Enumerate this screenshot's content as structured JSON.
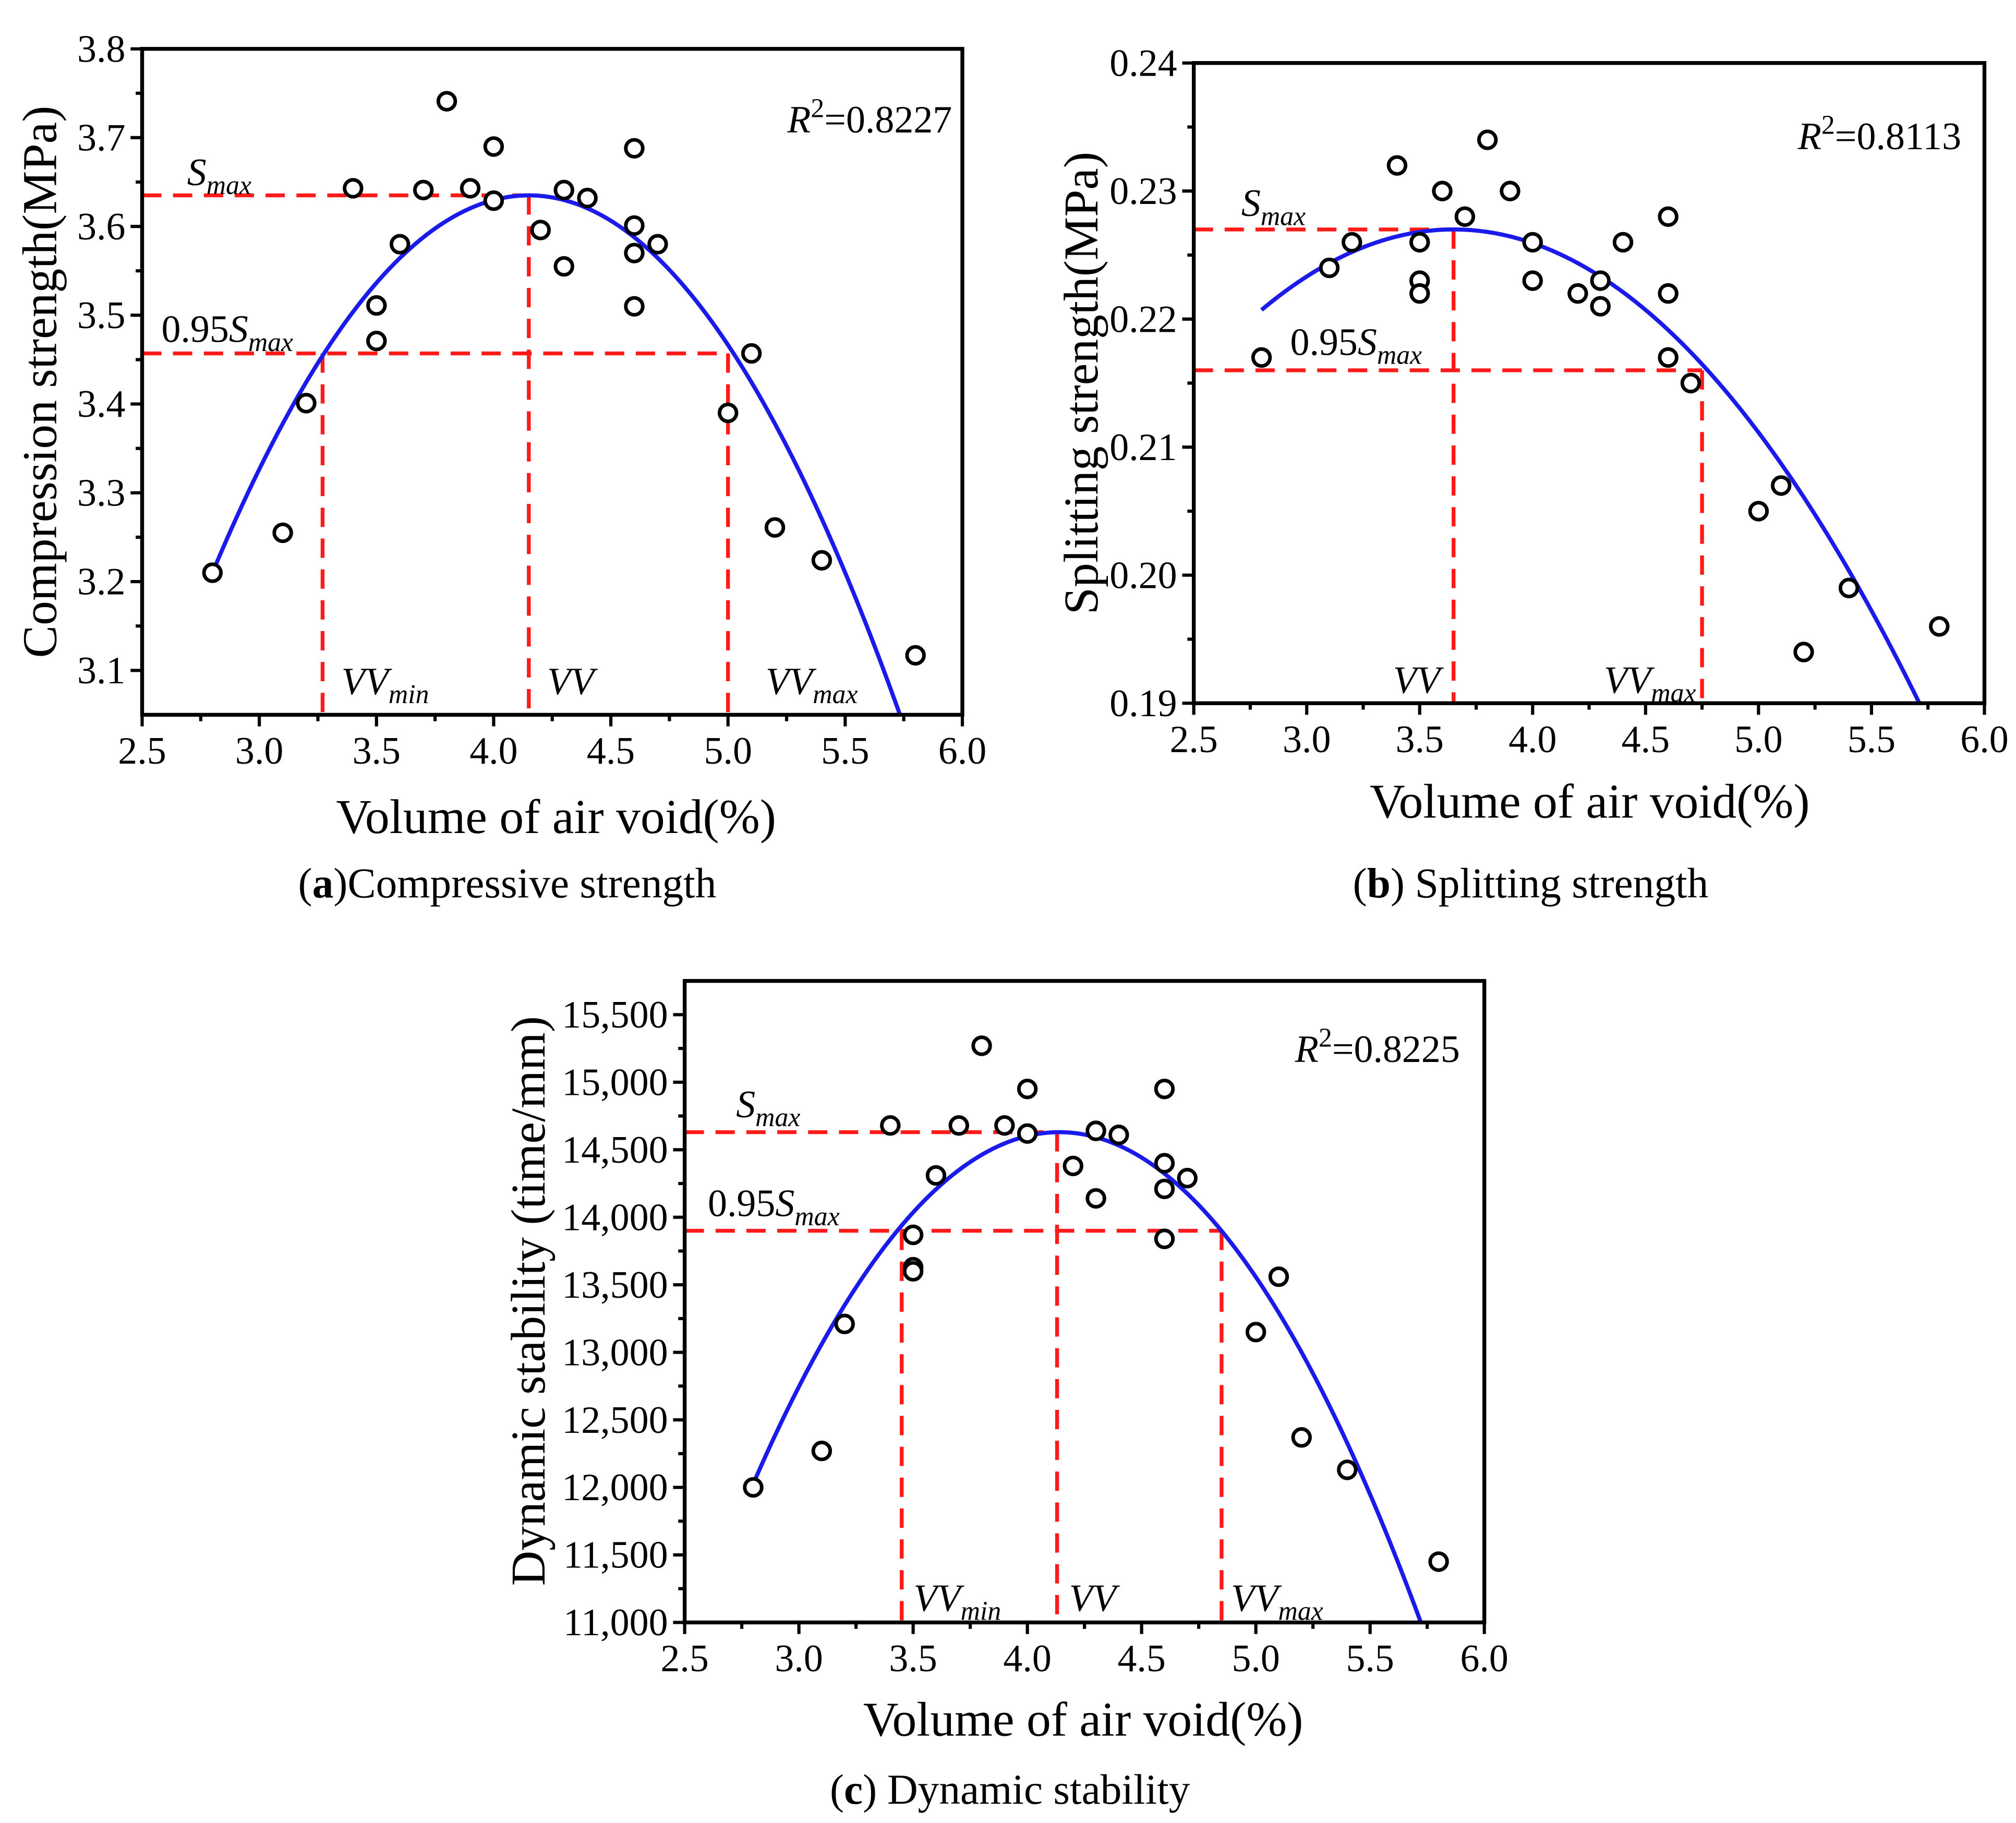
{
  "colors": {
    "fit": "#1a1aeb",
    "reference": "#ff1a1a",
    "marker": "#000000",
    "axis": "#000000"
  },
  "chart_data": [
    {
      "type": "scatter",
      "title": "",
      "caption": {
        "open": "(",
        "letter": "a",
        "close": ")",
        "text": "Compressive strength"
      },
      "xlabel": "Volume of air void(%)",
      "ylabel": "Compression strength(MPa)",
      "xlim": [
        2.5,
        6.0
      ],
      "ylim": [
        3.05,
        3.8
      ],
      "xtick_labels": [
        "2.5",
        "3.0",
        "3.5",
        "4.0",
        "4.5",
        "5.0",
        "5.5",
        "6.0"
      ],
      "ytick_labels": [
        "3.1",
        "3.2",
        "3.3",
        "3.4",
        "3.5",
        "3.6",
        "3.7",
        "3.8"
      ],
      "points": [
        [
          2.8,
          3.21
        ],
        [
          3.1,
          3.255
        ],
        [
          3.2,
          3.401
        ],
        [
          3.4,
          3.643
        ],
        [
          3.5,
          3.511
        ],
        [
          3.5,
          3.471
        ],
        [
          3.6,
          3.58
        ],
        [
          3.7,
          3.641
        ],
        [
          3.8,
          3.741
        ],
        [
          3.9,
          3.643
        ],
        [
          4.0,
          3.69
        ],
        [
          4.0,
          3.629
        ],
        [
          4.2,
          3.596
        ],
        [
          4.3,
          3.641
        ],
        [
          4.3,
          3.555
        ],
        [
          4.4,
          3.632
        ],
        [
          4.6,
          3.688
        ],
        [
          4.6,
          3.601
        ],
        [
          4.6,
          3.57
        ],
        [
          4.6,
          3.51
        ],
        [
          4.7,
          3.58
        ],
        [
          5.0,
          3.39
        ],
        [
          5.1,
          3.457
        ],
        [
          5.2,
          3.261
        ],
        [
          5.4,
          3.224
        ],
        [
          5.8,
          3.117
        ]
      ],
      "fit": {
        "a": -0.2332,
        "h": 4.15,
        "k": 3.635,
        "x_range": [
          2.8,
          5.8
        ]
      },
      "r2": {
        "symbol": "R",
        "sup": "2",
        "eq": "=0.8227"
      },
      "reference_lines": {
        "s_max": 3.635,
        "s95": 3.457,
        "vv_min": 3.27,
        "vv": 4.15,
        "vv_max": 5.0
      },
      "labels": {
        "s_max": {
          "main": "S",
          "sub": "max"
        },
        "s95": {
          "coef": "0.95",
          "main": "S",
          "sub": "max"
        },
        "vv_min": {
          "main": "VV",
          "sub": "min"
        },
        "vv": {
          "main": "VV"
        },
        "vv_max": {
          "main": "VV",
          "sub": "max"
        }
      }
    },
    {
      "type": "scatter",
      "title": "",
      "caption": {
        "open": "(",
        "letter": "b",
        "close": ")",
        "text": "Splitting strength"
      },
      "xlabel": "Volume of air void(%)",
      "ylabel": "Splitting strength(MPa)",
      "xlim": [
        2.5,
        6.0
      ],
      "ylim": [
        0.19,
        0.24
      ],
      "xtick_labels": [
        "2.5",
        "3.0",
        "3.5",
        "4.0",
        "4.5",
        "5.0",
        "5.5",
        "6.0"
      ],
      "ytick_labels": [
        "0.19",
        "0.20",
        "0.21",
        "0.22",
        "0.23",
        "0.24"
      ],
      "points": [
        [
          2.8,
          0.217
        ],
        [
          3.1,
          0.224
        ],
        [
          3.2,
          0.226
        ],
        [
          3.4,
          0.232
        ],
        [
          3.5,
          0.226
        ],
        [
          3.5,
          0.223
        ],
        [
          3.5,
          0.222
        ],
        [
          3.6,
          0.23
        ],
        [
          3.7,
          0.228
        ],
        [
          3.8,
          0.234
        ],
        [
          3.9,
          0.23
        ],
        [
          4.0,
          0.226
        ],
        [
          4.0,
          0.223
        ],
        [
          4.2,
          0.222
        ],
        [
          4.3,
          0.223
        ],
        [
          4.3,
          0.221
        ],
        [
          4.4,
          0.226
        ],
        [
          4.6,
          0.228
        ],
        [
          4.6,
          0.222
        ],
        [
          4.6,
          0.217
        ],
        [
          4.7,
          0.215
        ],
        [
          5.0,
          0.205
        ],
        [
          5.1,
          0.207
        ],
        [
          5.2,
          0.194
        ],
        [
          5.4,
          0.199
        ],
        [
          5.8,
          0.196
        ]
      ],
      "fit": {
        "a": -0.0087,
        "h": 3.65,
        "k": 0.227,
        "x_range": [
          2.8,
          5.8
        ]
      },
      "r2": {
        "symbol": "R",
        "sup": "2",
        "eq": "=0.8113"
      },
      "reference_lines": {
        "s_max": 0.227,
        "s95": 0.216,
        "vv": 3.65,
        "vv_max": 4.75
      },
      "labels": {
        "s_max": {
          "main": "S",
          "sub": "max"
        },
        "s95": {
          "coef": "0.95",
          "main": "S",
          "sub": "max"
        },
        "vv": {
          "main": "VV"
        },
        "vv_max": {
          "main": "VV",
          "sub": "max"
        }
      }
    },
    {
      "type": "scatter",
      "title": "",
      "caption": {
        "open": "(",
        "letter": "c",
        "close": ")",
        "text": "Dynamic stability"
      },
      "xlabel": "Volume of air void(%)",
      "ylabel": "Dynamic stability (time/mm)",
      "xlim": [
        2.5,
        6.0
      ],
      "ylim": [
        11000,
        15750
      ],
      "xtick_labels": [
        "2.5",
        "3.0",
        "3.5",
        "4.0",
        "4.5",
        "5.0",
        "5.5",
        "6.0"
      ],
      "ytick_labels": [
        "11,000",
        "11,500",
        "12,000",
        "12,500",
        "13,000",
        "13,500",
        "14,000",
        "14,500",
        "15,000",
        "15,500"
      ],
      "points": [
        [
          2.8,
          12000
        ],
        [
          3.1,
          12270
        ],
        [
          3.2,
          13210
        ],
        [
          3.4,
          14680
        ],
        [
          3.5,
          13870
        ],
        [
          3.5,
          13630
        ],
        [
          3.5,
          13600
        ],
        [
          3.6,
          14310
        ],
        [
          3.7,
          14680
        ],
        [
          3.8,
          15270
        ],
        [
          3.9,
          14680
        ],
        [
          4.0,
          14950
        ],
        [
          4.0,
          14620
        ],
        [
          4.2,
          14380
        ],
        [
          4.3,
          14640
        ],
        [
          4.3,
          14140
        ],
        [
          4.4,
          14610
        ],
        [
          4.6,
          14950
        ],
        [
          4.6,
          14400
        ],
        [
          4.6,
          14210
        ],
        [
          4.6,
          13840
        ],
        [
          4.7,
          14290
        ],
        [
          5.0,
          13150
        ],
        [
          5.1,
          13560
        ],
        [
          5.2,
          12370
        ],
        [
          5.4,
          12130
        ],
        [
          5.8,
          11450
        ]
      ],
      "fit": {
        "a": -1450,
        "h": 4.14,
        "k": 14630,
        "x_range": [
          2.8,
          5.8
        ]
      },
      "r2": {
        "symbol": "R",
        "sup": "2",
        "eq": "=0.8225"
      },
      "reference_lines": {
        "s_max": 14630,
        "s95": 13900,
        "vv_min": 3.45,
        "vv": 4.13,
        "vv_max": 4.85
      },
      "labels": {
        "s_max": {
          "main": "S",
          "sub": "max"
        },
        "s95": {
          "coef": "0.95",
          "main": "S",
          "sub": "max"
        },
        "vv_min": {
          "main": "VV",
          "sub": "min"
        },
        "vv": {
          "main": "VV"
        },
        "vv_max": {
          "main": "VV",
          "sub": "max"
        }
      }
    }
  ]
}
